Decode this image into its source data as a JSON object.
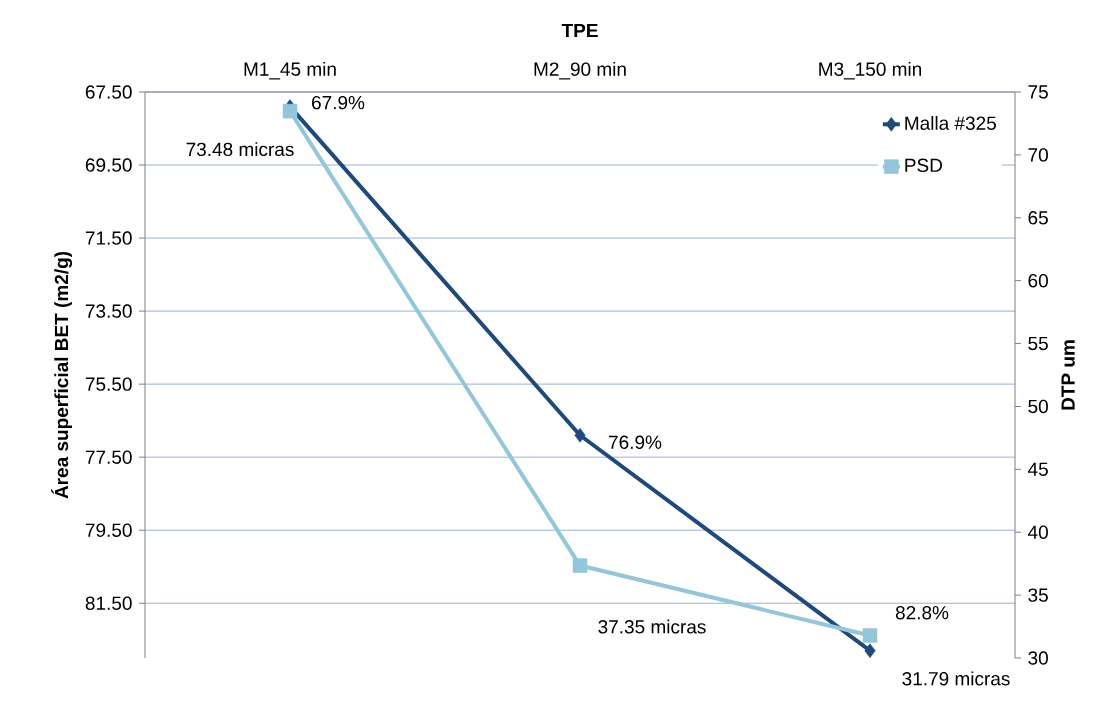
{
  "chart_data": {
    "type": "line",
    "xlabel": "TPE",
    "ylabel": "Área superficial BET (m2/g)",
    "y2label": "DTP um",
    "categories": [
      "M1_45 min",
      "M2_90 min",
      "M3_150 min"
    ],
    "ylim": [
      83,
      67.5
    ],
    "yticks": [
      {
        "value": 67.5,
        "label": "67.50"
      },
      {
        "value": 69.5,
        "label": "69.50"
      },
      {
        "value": 71.5,
        "label": "71.50"
      },
      {
        "value": 73.5,
        "label": "73.50"
      },
      {
        "value": 75.5,
        "label": "75.50"
      },
      {
        "value": 77.5,
        "label": "77.50"
      },
      {
        "value": 79.5,
        "label": "79.50"
      },
      {
        "value": 81.5,
        "label": "81.50"
      }
    ],
    "y2lim": [
      30,
      75
    ],
    "y2ticks": [
      30,
      35,
      40,
      45,
      50,
      55,
      60,
      65,
      70,
      75
    ],
    "grid": "y",
    "legend": "top right",
    "series": [
      {
        "name": "Malla #325",
        "color": "#1f497d",
        "marker": "diamond",
        "values": [
          67.9,
          76.9,
          82.8
        ],
        "value_labels": [
          "67.9%",
          "76.9%",
          "82.8%"
        ]
      },
      {
        "name": "PSD",
        "color": "#93c6da",
        "marker": "square",
        "axis": "y2",
        "values": [
          73.48,
          37.35,
          31.79
        ],
        "value_labels": [
          "73.48 micras",
          "37.35 micras",
          "31.79 micras"
        ]
      }
    ]
  }
}
